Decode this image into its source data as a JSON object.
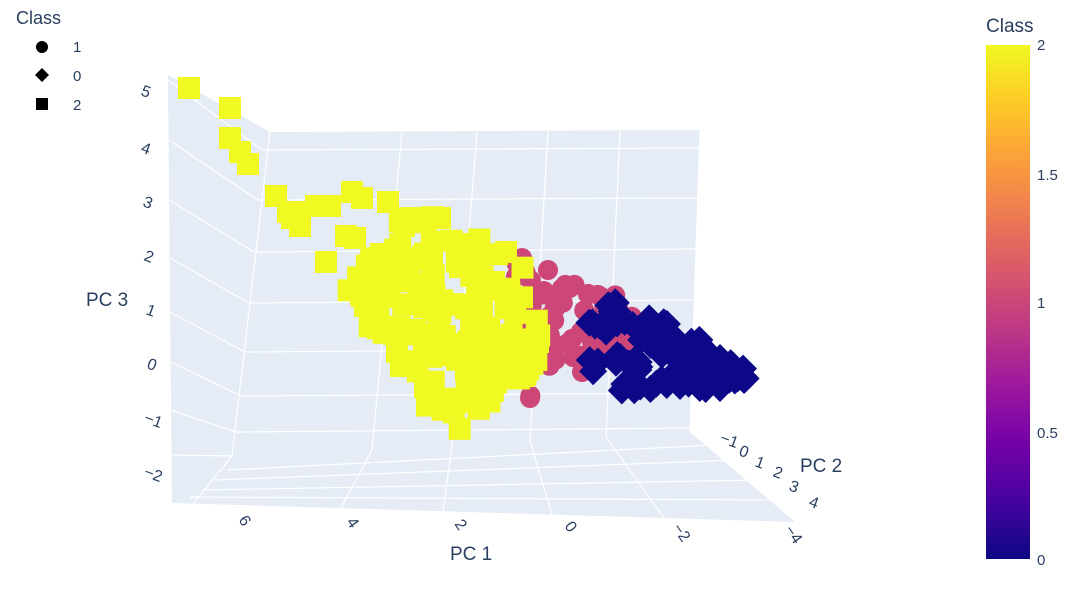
{
  "chart_data": {
    "type": "scatter3d",
    "axes": {
      "x": {
        "label": "PC 1",
        "ticks": [
          "6",
          "4",
          "2",
          "0",
          "−2",
          "−4"
        ]
      },
      "y": {
        "label": "PC 2",
        "ticks": [
          "−1",
          "0",
          "1",
          "2",
          "3",
          "4"
        ]
      },
      "z": {
        "label": "PC 3",
        "ticks": [
          "5",
          "4",
          "3",
          "2",
          "1",
          "0",
          "−1",
          "−2"
        ]
      }
    },
    "legend": {
      "title": "Class",
      "placement": "top-left",
      "items": [
        {
          "label": "1",
          "symbol": "circle"
        },
        {
          "label": "0",
          "symbol": "diamond"
        },
        {
          "label": "2",
          "symbol": "square"
        }
      ]
    },
    "colorbar": {
      "title": "Class",
      "ticks": [
        "2",
        "1.5",
        "1",
        "0.5",
        "0"
      ],
      "range": [
        0,
        2
      ],
      "colors": [
        "#0d0887",
        "#46039f",
        "#7201a8",
        "#9c179e",
        "#bd3786",
        "#d8576b",
        "#ed7953",
        "#fb9f3a",
        "#fdca26",
        "#f0f921"
      ]
    },
    "series": [
      {
        "name": "1",
        "symbol": "circle",
        "color": "#cc4778"
      },
      {
        "name": "0",
        "symbol": "diamond",
        "color": "#0d0887"
      },
      {
        "name": "2",
        "symbol": "square",
        "color": "#f0f921"
      }
    ],
    "grid": true
  },
  "colors": {
    "scene_bg": "#e5ecf6",
    "grid": "#ffffff",
    "class_0": "#0d0887",
    "class_1": "#cc4778",
    "class_2": "#f0f921"
  }
}
